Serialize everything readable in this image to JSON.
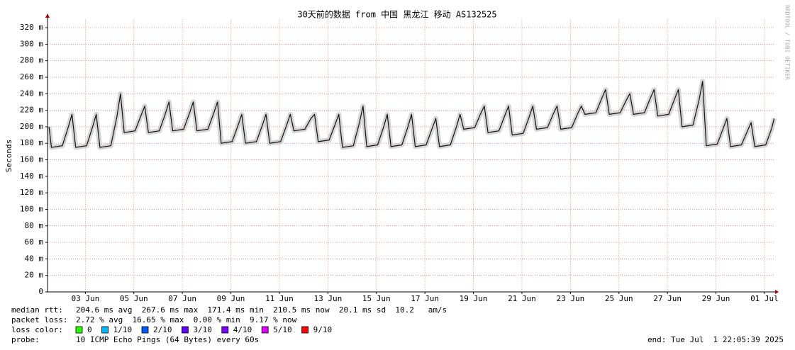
{
  "chart_data": {
    "type": "line",
    "title": "30天前的数据 from 中国 黑龙江 移动 AS132525",
    "ylabel": "Seconds",
    "watermark": "RRDTOOL / TOBI OETIKER",
    "xlim": [
      1.44,
      31.44
    ],
    "xticks": [
      {
        "value": 3,
        "label": "03 Jun"
      },
      {
        "value": 5,
        "label": "05 Jun"
      },
      {
        "value": 7,
        "label": "07 Jun"
      },
      {
        "value": 9,
        "label": "09 Jun"
      },
      {
        "value": 11,
        "label": "11 Jun"
      },
      {
        "value": 13,
        "label": "13 Jun"
      },
      {
        "value": 15,
        "label": "15 Jun"
      },
      {
        "value": 17,
        "label": "17 Jun"
      },
      {
        "value": 19,
        "label": "19 Jun"
      },
      {
        "value": 21,
        "label": "21 Jun"
      },
      {
        "value": 23,
        "label": "23 Jun"
      },
      {
        "value": 25,
        "label": "25 Jun"
      },
      {
        "value": 27,
        "label": "27 Jun"
      },
      {
        "value": 29,
        "label": "29 Jun"
      },
      {
        "value": 31,
        "label": "01 Jul"
      }
    ],
    "ylim": [
      0,
      330
    ],
    "yticks": [
      0,
      {
        "value": 20,
        "label": "20 m"
      },
      {
        "value": 40,
        "label": "40 m"
      },
      {
        "value": 60,
        "label": "60 m"
      },
      {
        "value": 80,
        "label": "80 m"
      },
      {
        "value": 100,
        "label": "100 m"
      },
      {
        "value": 120,
        "label": "120 m"
      },
      {
        "value": 140,
        "label": "140 m"
      },
      {
        "value": 160,
        "label": "160 m"
      },
      {
        "value": 180,
        "label": "180 m"
      },
      {
        "value": 200,
        "label": "200 m"
      },
      {
        "value": 220,
        "label": "220 m"
      },
      {
        "value": 240,
        "label": "240 m"
      },
      {
        "value": 260,
        "label": "260 m"
      },
      {
        "value": 280,
        "label": "280 m"
      },
      {
        "value": 300,
        "label": "300 m"
      },
      {
        "value": 320,
        "label": "320 m"
      }
    ],
    "grid": true,
    "x": [
      1.5,
      1.6,
      2.05,
      2.3,
      2.45,
      2.6,
      3.05,
      3.3,
      3.45,
      3.6,
      4.05,
      4.3,
      4.45,
      4.6,
      5.05,
      5.3,
      5.45,
      5.6,
      6.05,
      6.3,
      6.45,
      6.6,
      7.05,
      7.3,
      7.45,
      7.6,
      8.05,
      8.3,
      8.45,
      8.6,
      9.05,
      9.3,
      9.45,
      9.6,
      10.05,
      10.3,
      10.45,
      10.6,
      11.05,
      11.3,
      11.45,
      11.6,
      12.05,
      12.3,
      12.45,
      12.6,
      13.05,
      13.3,
      13.45,
      13.6,
      14.05,
      14.3,
      14.45,
      14.6,
      15.05,
      15.3,
      15.45,
      15.6,
      16.05,
      16.3,
      16.45,
      16.6,
      17.05,
      17.3,
      17.45,
      17.6,
      18.05,
      18.3,
      18.45,
      18.6,
      19.05,
      19.3,
      19.45,
      19.6,
      20.05,
      20.3,
      20.45,
      20.6,
      21.05,
      21.3,
      21.45,
      21.6,
      22.05,
      22.3,
      22.45,
      22.6,
      23.05,
      23.3,
      23.45,
      23.6,
      24.05,
      24.3,
      24.45,
      24.6,
      25.05,
      25.3,
      25.45,
      25.6,
      26.05,
      26.3,
      26.45,
      26.6,
      27.05,
      27.3,
      27.45,
      27.6,
      28.05,
      28.3,
      28.45,
      28.6,
      29.05,
      29.3,
      29.45,
      29.6,
      30.05,
      30.3,
      30.45,
      30.6,
      31.05,
      31.3,
      31.4
    ],
    "series": [
      {
        "color": "#111111",
        "values": [
          200,
          175,
          177,
          200,
          215,
          175,
          177,
          200,
          215,
          175,
          177,
          212,
          240,
          193,
          195,
          214,
          225,
          193,
          195,
          216,
          230,
          195,
          197,
          217,
          230,
          195,
          197,
          217,
          230,
          180,
          182,
          202,
          215,
          180,
          182,
          202,
          215,
          180,
          182,
          202,
          215,
          195,
          197,
          210,
          215,
          182,
          184,
          203,
          215,
          175,
          177,
          205,
          225,
          176,
          178,
          200,
          215,
          176,
          178,
          200,
          215,
          176,
          178,
          198,
          210,
          176,
          178,
          200,
          215,
          197,
          199,
          216,
          225,
          193,
          195,
          214,
          225,
          190,
          192,
          212,
          225,
          197,
          199,
          216,
          225,
          197,
          199,
          216,
          225,
          215,
          217,
          235,
          245,
          215,
          217,
          232,
          240,
          215,
          217,
          235,
          245,
          213,
          215,
          234,
          245,
          200,
          202,
          232,
          255,
          177,
          179,
          198,
          210,
          176,
          178,
          195,
          205,
          176,
          178,
          198,
          210
        ]
      }
    ],
    "stats": [
      {
        "label": "median rtt:",
        "text": "204.6 ms avg  267.6 ms max  171.4 ms min  210.5 ms now  20.1 ms sd  10.2   am/s"
      },
      {
        "label": "packet loss:",
        "text": "2.72 % avg  16.65 % max  0.00 % min  9.17 % now"
      }
    ],
    "loss_color": {
      "label": "loss color:",
      "items": [
        {
          "label": "0",
          "color": "#26ff00"
        },
        {
          "label": "1/10",
          "color": "#00b8ff"
        },
        {
          "label": "2/10",
          "color": "#0059ff"
        },
        {
          "label": "3/10",
          "color": "#5e00ff"
        },
        {
          "label": "4/10",
          "color": "#7e00ff"
        },
        {
          "label": "5/10",
          "color": "#dd00ff"
        },
        {
          "label": "9/10",
          "color": "#ff0000"
        }
      ]
    },
    "probe": {
      "label": "probe:",
      "text": "10 ICMP Echo Pings (64 Bytes) every 60s"
    },
    "end": "end: Tue Jul  1 22:05:39 2025"
  }
}
